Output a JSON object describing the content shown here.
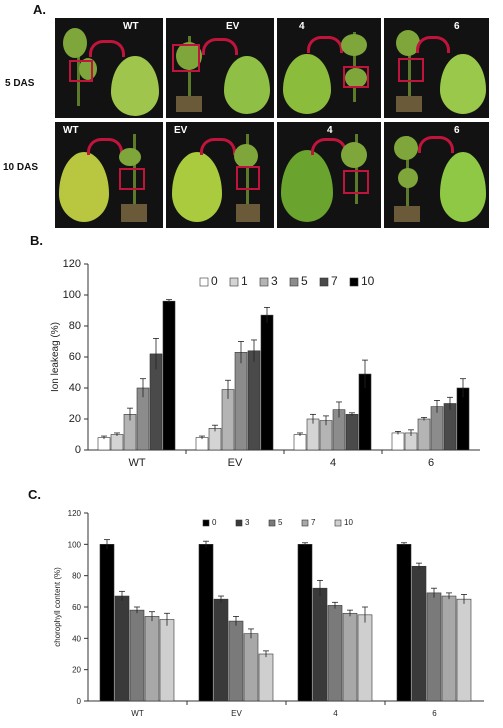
{
  "panels": {
    "a": "A.",
    "b": "B.",
    "c": "C."
  },
  "photo_rows": {
    "row1": "5 DAS",
    "row2": "10 DAS"
  },
  "photo_tags": [
    "WT",
    "EV",
    "4",
    "6"
  ],
  "chart_data": [
    {
      "type": "bar",
      "ylabel": "Ion leakeag (%)",
      "ylim": [
        0,
        120
      ],
      "yticks": [
        "0",
        "20",
        "40",
        "60",
        "80",
        "100",
        "120"
      ],
      "categories": [
        "WT",
        "EV",
        "4",
        "6"
      ],
      "legend_placement": "top",
      "series": [
        {
          "name": "0",
          "color": "#ffffff",
          "values": [
            8,
            8,
            10,
            11
          ],
          "errors": [
            1,
            1,
            1,
            1
          ]
        },
        {
          "name": "1",
          "color": "#d4d4d4",
          "values": [
            10,
            14,
            20,
            11
          ],
          "errors": [
            1,
            2,
            3,
            2
          ]
        },
        {
          "name": "3",
          "color": "#b4b4b4",
          "values": [
            23,
            39,
            19,
            20
          ],
          "errors": [
            4,
            6,
            3,
            1
          ]
        },
        {
          "name": "5",
          "color": "#8c8c8c",
          "values": [
            40,
            63,
            26,
            28
          ],
          "errors": [
            6,
            7,
            5,
            4
          ]
        },
        {
          "name": "7",
          "color": "#4a4a4a",
          "values": [
            62,
            64,
            23,
            30
          ],
          "errors": [
            10,
            7,
            1,
            4
          ]
        },
        {
          "name": "10",
          "color": "#000000",
          "values": [
            96,
            87,
            49,
            40
          ],
          "errors": [
            1,
            5,
            9,
            6
          ]
        }
      ]
    },
    {
      "type": "bar",
      "ylabel": "chorophyll content (%)",
      "ylim": [
        0,
        120
      ],
      "yticks": [
        "0",
        "20",
        "40",
        "60",
        "80",
        "100",
        "120"
      ],
      "categories": [
        "WT",
        "EV",
        "4",
        "6"
      ],
      "legend_placement": "top",
      "series": [
        {
          "name": "0",
          "color": "#000000",
          "values": [
            100,
            100,
            100,
            100
          ],
          "errors": [
            3,
            2,
            1,
            1
          ]
        },
        {
          "name": "3",
          "color": "#3a3a3a",
          "values": [
            67,
            65,
            72,
            86
          ],
          "errors": [
            3,
            2,
            5,
            2
          ]
        },
        {
          "name": "5",
          "color": "#7a7a7a",
          "values": [
            58,
            51,
            61,
            69
          ],
          "errors": [
            2,
            3,
            2,
            3
          ]
        },
        {
          "name": "7",
          "color": "#a8a8a8",
          "values": [
            54,
            43,
            56,
            67
          ],
          "errors": [
            3,
            3,
            2,
            2
          ]
        },
        {
          "name": "10",
          "color": "#cfcfcf",
          "values": [
            52,
            30,
            55,
            65
          ],
          "errors": [
            4,
            2,
            5,
            3
          ]
        }
      ]
    }
  ]
}
